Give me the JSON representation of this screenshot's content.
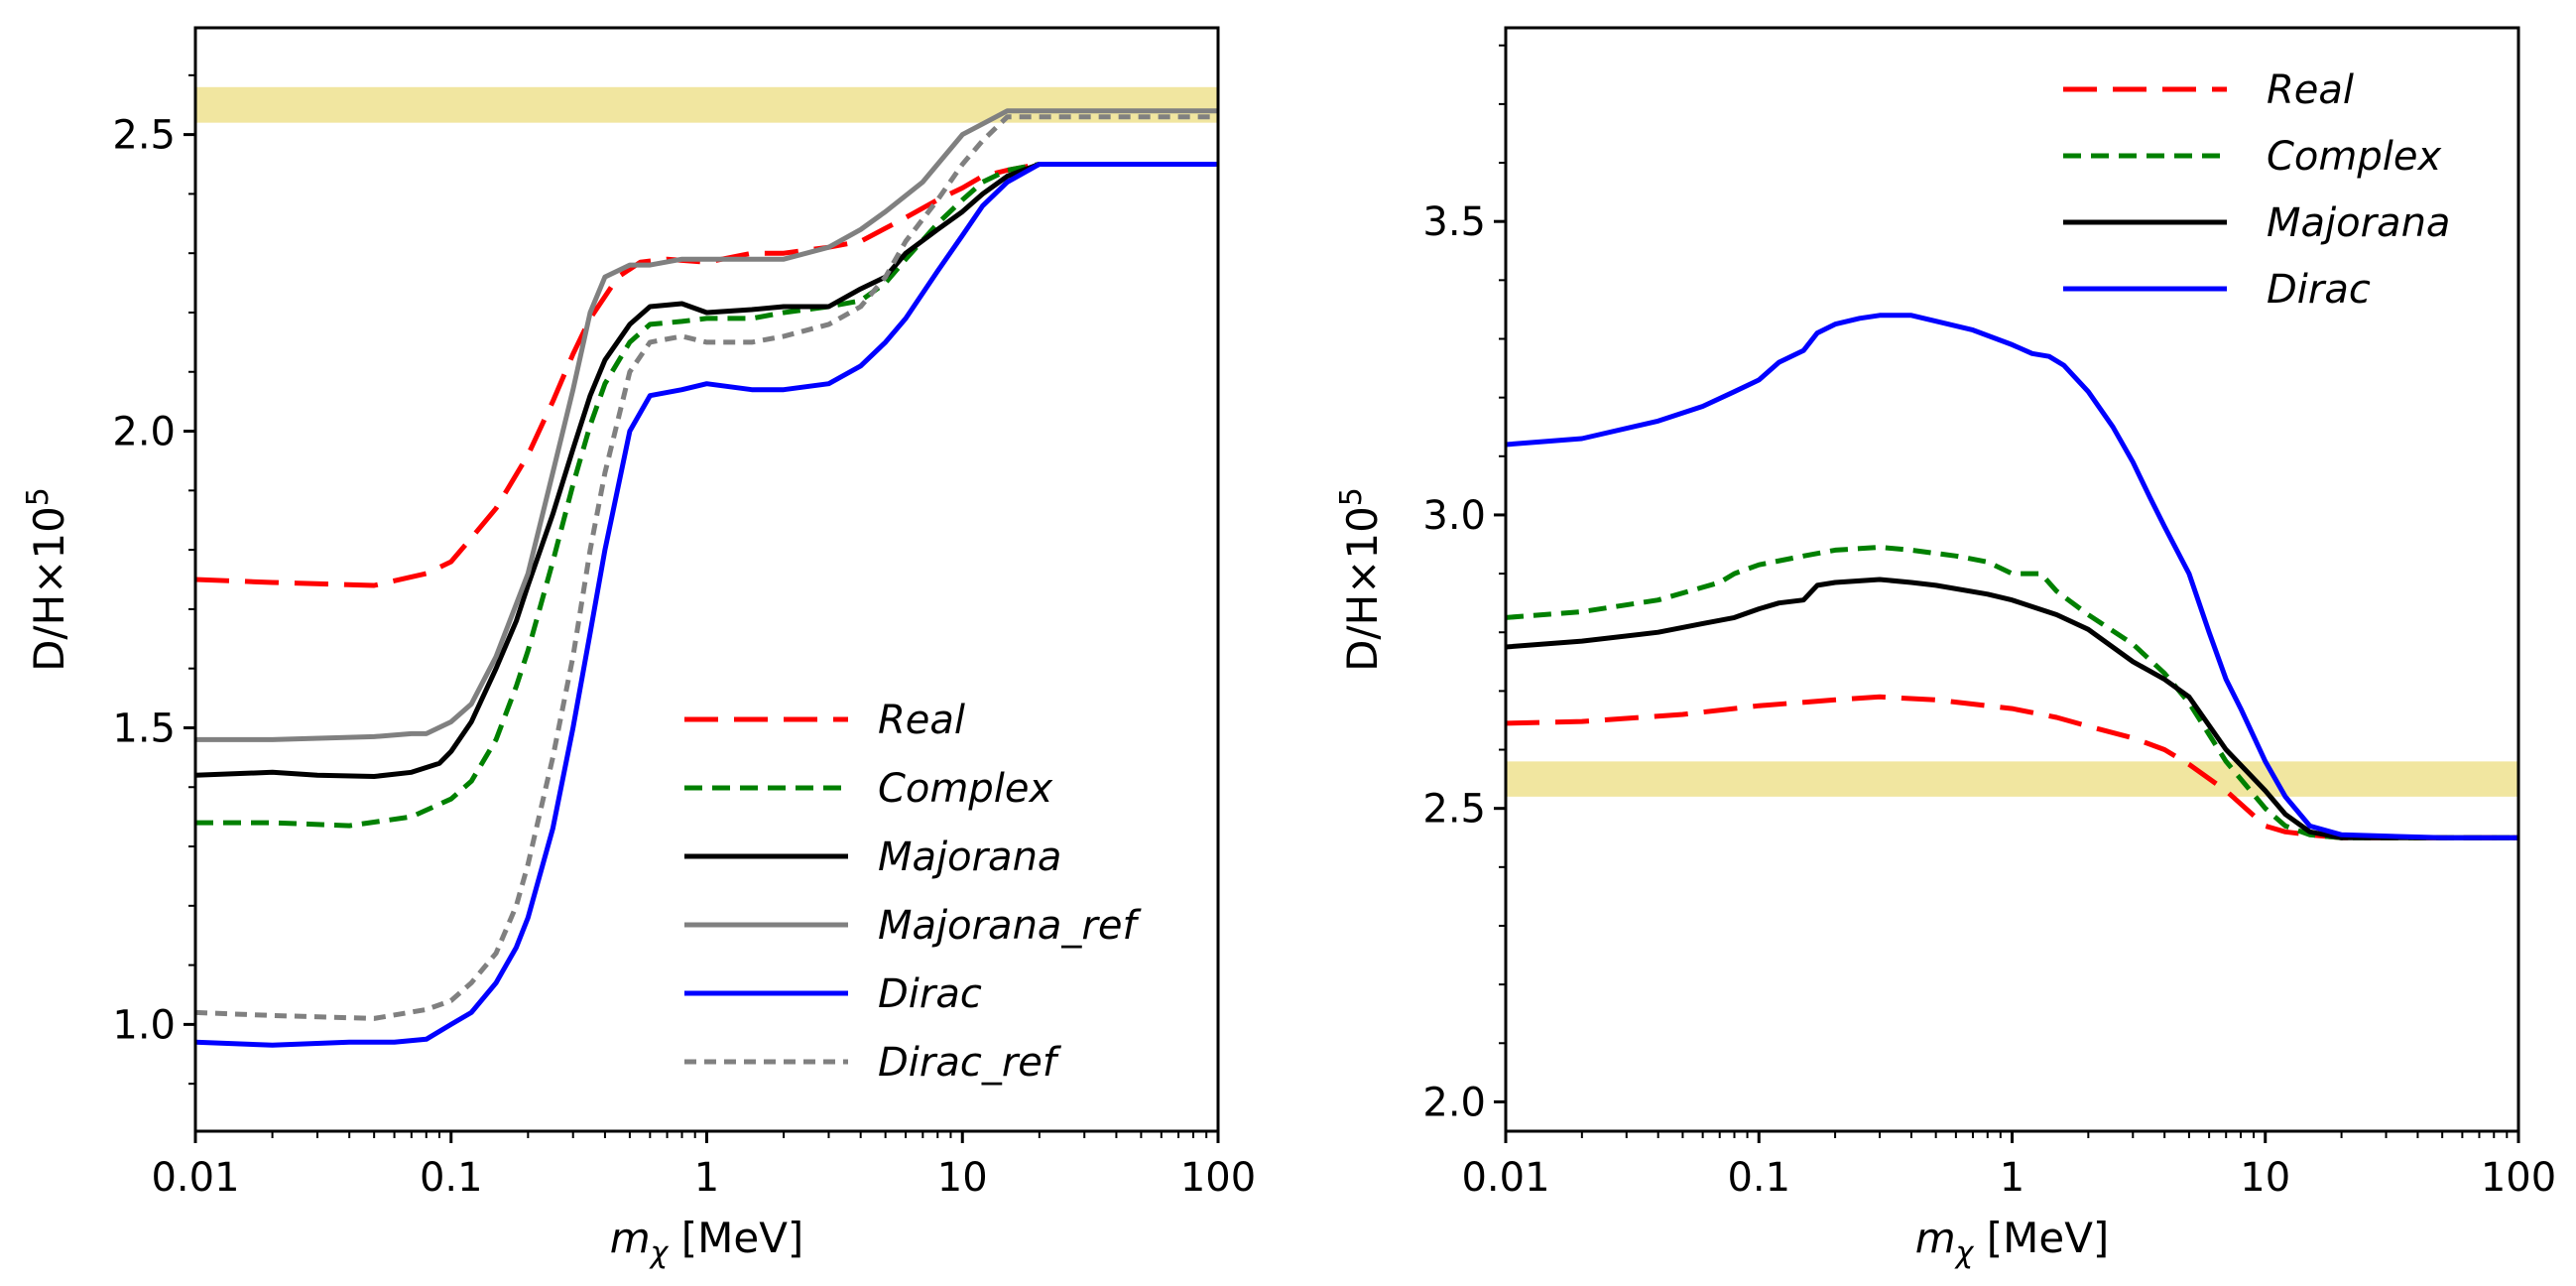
{
  "chart_data": [
    {
      "type": "line",
      "xscale": "log",
      "xlim": [
        0.01,
        100
      ],
      "ylim": [
        0.82,
        2.68
      ],
      "xticks": [
        0.01,
        0.1,
        1,
        10,
        100
      ],
      "xtick_labels": [
        "0.01",
        "0.1",
        "1",
        "10",
        "100"
      ],
      "yticks": [
        1.0,
        1.5,
        2.0,
        2.5
      ],
      "ytick_labels": [
        "1.0",
        "1.5",
        "2.0",
        "2.5"
      ],
      "xlabel": {
        "sym": "m",
        "sub": "χ",
        "unit": " [MeV]"
      },
      "ylabel": {
        "base": "D/H×10",
        "exp": "5"
      },
      "band": {
        "y0": 2.52,
        "y1": 2.58,
        "color": "#f1e6a0"
      },
      "legend_position": "lower-right",
      "series": [
        {
          "name": "Real",
          "color": "#ff0000",
          "style": "longdash",
          "x": [
            0.01,
            0.02,
            0.05,
            0.08,
            0.1,
            0.12,
            0.15,
            0.2,
            0.25,
            0.3,
            0.35,
            0.45,
            0.55,
            0.7,
            1,
            1.5,
            2,
            3,
            4,
            6,
            8,
            10,
            12,
            15,
            20,
            30,
            50,
            100
          ],
          "y": [
            1.75,
            1.745,
            1.74,
            1.76,
            1.78,
            1.82,
            1.87,
            1.96,
            2.05,
            2.13,
            2.19,
            2.26,
            2.285,
            2.29,
            2.285,
            2.3,
            2.3,
            2.31,
            2.32,
            2.36,
            2.39,
            2.41,
            2.43,
            2.44,
            2.45,
            2.45,
            2.45,
            2.45
          ]
        },
        {
          "name": "Complex",
          "color": "#008000",
          "style": "dash",
          "x": [
            0.01,
            0.02,
            0.04,
            0.07,
            0.1,
            0.12,
            0.15,
            0.18,
            0.2,
            0.25,
            0.3,
            0.35,
            0.4,
            0.5,
            0.6,
            0.8,
            1,
            1.5,
            2,
            3,
            4,
            5,
            6,
            8,
            10,
            12,
            15,
            20,
            30,
            50,
            100
          ],
          "y": [
            1.34,
            1.34,
            1.335,
            1.35,
            1.38,
            1.41,
            1.48,
            1.57,
            1.63,
            1.78,
            1.91,
            2.01,
            2.08,
            2.15,
            2.18,
            2.185,
            2.19,
            2.19,
            2.2,
            2.21,
            2.22,
            2.25,
            2.29,
            2.35,
            2.39,
            2.42,
            2.44,
            2.45,
            2.45,
            2.45,
            2.45
          ]
        },
        {
          "name": "Majorana",
          "color": "#000000",
          "style": "solid",
          "x": [
            0.01,
            0.02,
            0.03,
            0.05,
            0.07,
            0.09,
            0.1,
            0.12,
            0.15,
            0.18,
            0.2,
            0.25,
            0.3,
            0.35,
            0.4,
            0.5,
            0.6,
            0.8,
            1,
            1.5,
            2,
            3,
            4,
            5,
            6,
            8,
            10,
            12,
            15,
            20,
            30,
            50,
            100
          ],
          "y": [
            1.42,
            1.425,
            1.42,
            1.418,
            1.425,
            1.44,
            1.46,
            1.51,
            1.6,
            1.68,
            1.74,
            1.86,
            1.97,
            2.06,
            2.12,
            2.18,
            2.21,
            2.215,
            2.2,
            2.205,
            2.21,
            2.21,
            2.24,
            2.26,
            2.3,
            2.34,
            2.37,
            2.4,
            2.43,
            2.45,
            2.45,
            2.45,
            2.45
          ]
        },
        {
          "name": "Majorana_ref",
          "color": "#808080",
          "style": "solid",
          "x": [
            0.01,
            0.02,
            0.05,
            0.07,
            0.08,
            0.1,
            0.12,
            0.15,
            0.2,
            0.25,
            0.3,
            0.35,
            0.4,
            0.5,
            0.6,
            0.8,
            1,
            1.5,
            2,
            3,
            4,
            5,
            7,
            10,
            15,
            20,
            30,
            50,
            100
          ],
          "y": [
            1.48,
            1.48,
            1.485,
            1.49,
            1.49,
            1.51,
            1.54,
            1.62,
            1.76,
            1.93,
            2.07,
            2.2,
            2.26,
            2.28,
            2.28,
            2.29,
            2.29,
            2.29,
            2.29,
            2.31,
            2.34,
            2.37,
            2.42,
            2.5,
            2.54,
            2.54,
            2.54,
            2.54,
            2.54
          ]
        },
        {
          "name": "Dirac",
          "color": "#0000ff",
          "style": "solid",
          "x": [
            0.01,
            0.02,
            0.04,
            0.06,
            0.08,
            0.1,
            0.12,
            0.15,
            0.18,
            0.2,
            0.25,
            0.3,
            0.35,
            0.4,
            0.5,
            0.6,
            0.8,
            1,
            1.5,
            2,
            3,
            4,
            5,
            6,
            8,
            10,
            12,
            15,
            20,
            30,
            50,
            100
          ],
          "y": [
            0.97,
            0.965,
            0.97,
            0.97,
            0.975,
            1.0,
            1.02,
            1.07,
            1.13,
            1.18,
            1.33,
            1.5,
            1.66,
            1.8,
            2.0,
            2.06,
            2.07,
            2.08,
            2.07,
            2.07,
            2.08,
            2.11,
            2.15,
            2.19,
            2.27,
            2.33,
            2.38,
            2.42,
            2.45,
            2.45,
            2.45,
            2.45
          ]
        },
        {
          "name": "Dirac_ref",
          "color": "#808080",
          "style": "shortdash",
          "x": [
            0.01,
            0.02,
            0.05,
            0.08,
            0.1,
            0.12,
            0.15,
            0.18,
            0.2,
            0.25,
            0.3,
            0.35,
            0.4,
            0.5,
            0.6,
            0.8,
            1,
            1.5,
            2,
            3,
            4,
            5,
            6,
            8,
            10,
            12,
            15,
            20,
            30,
            50,
            100
          ],
          "y": [
            1.02,
            1.015,
            1.01,
            1.025,
            1.04,
            1.07,
            1.12,
            1.2,
            1.27,
            1.45,
            1.62,
            1.8,
            1.93,
            2.1,
            2.15,
            2.16,
            2.15,
            2.15,
            2.16,
            2.18,
            2.21,
            2.26,
            2.32,
            2.39,
            2.45,
            2.49,
            2.53,
            2.53,
            2.53,
            2.53,
            2.53
          ]
        }
      ]
    },
    {
      "type": "line",
      "xscale": "log",
      "xlim": [
        0.01,
        100
      ],
      "ylim": [
        1.95,
        3.83
      ],
      "xticks": [
        0.01,
        0.1,
        1,
        10,
        100
      ],
      "xtick_labels": [
        "0.01",
        "0.1",
        "1",
        "10",
        "100"
      ],
      "yticks": [
        2.0,
        2.5,
        3.0,
        3.5
      ],
      "ytick_labels": [
        "2.0",
        "2.5",
        "3.0",
        "3.5"
      ],
      "xlabel": {
        "sym": "m",
        "sub": "χ",
        "unit": " [MeV]"
      },
      "ylabel": {
        "base": "D/H×10",
        "exp": "5"
      },
      "band": {
        "y0": 2.52,
        "y1": 2.58,
        "color": "#f1e6a0"
      },
      "legend_position": "upper-right",
      "series": [
        {
          "name": "Real",
          "color": "#ff0000",
          "style": "longdash",
          "x": [
            0.01,
            0.02,
            0.05,
            0.1,
            0.2,
            0.3,
            0.5,
            1,
            1.5,
            2,
            3,
            4,
            5,
            7,
            10,
            12,
            15,
            20,
            50,
            100
          ],
          "y": [
            2.645,
            2.648,
            2.66,
            2.675,
            2.685,
            2.69,
            2.685,
            2.67,
            2.655,
            2.64,
            2.62,
            2.6,
            2.575,
            2.53,
            2.47,
            2.46,
            2.455,
            2.45,
            2.45,
            2.45
          ]
        },
        {
          "name": "Complex",
          "color": "#008000",
          "style": "dash",
          "x": [
            0.01,
            0.02,
            0.04,
            0.07,
            0.08,
            0.1,
            0.15,
            0.2,
            0.3,
            0.4,
            0.6,
            0.8,
            1,
            1.3,
            1.5,
            2,
            3,
            4,
            5,
            7,
            10,
            12,
            15,
            20,
            50,
            100
          ],
          "y": [
            2.825,
            2.835,
            2.855,
            2.885,
            2.9,
            2.915,
            2.93,
            2.94,
            2.945,
            2.94,
            2.93,
            2.92,
            2.9,
            2.9,
            2.87,
            2.83,
            2.78,
            2.73,
            2.68,
            2.58,
            2.5,
            2.47,
            2.455,
            2.45,
            2.45,
            2.45
          ]
        },
        {
          "name": "Majorana",
          "color": "#000000",
          "style": "solid",
          "x": [
            0.01,
            0.02,
            0.04,
            0.06,
            0.08,
            0.1,
            0.12,
            0.15,
            0.17,
            0.2,
            0.3,
            0.4,
            0.5,
            0.8,
            1,
            1.5,
            2,
            3,
            4,
            5,
            7,
            10,
            12,
            15,
            20,
            50,
            100
          ],
          "y": [
            2.775,
            2.785,
            2.8,
            2.815,
            2.825,
            2.84,
            2.85,
            2.855,
            2.88,
            2.885,
            2.89,
            2.885,
            2.88,
            2.865,
            2.855,
            2.83,
            2.805,
            2.75,
            2.72,
            2.69,
            2.6,
            2.53,
            2.49,
            2.46,
            2.45,
            2.45,
            2.45
          ]
        },
        {
          "name": "Dirac",
          "color": "#0000ff",
          "style": "solid",
          "x": [
            0.01,
            0.02,
            0.04,
            0.06,
            0.08,
            0.1,
            0.12,
            0.15,
            0.17,
            0.2,
            0.25,
            0.3,
            0.4,
            0.5,
            0.7,
            1,
            1.2,
            1.4,
            1.6,
            2,
            2.5,
            3,
            3.5,
            4,
            5,
            6,
            7,
            8,
            10,
            12,
            15,
            20,
            50,
            100
          ],
          "y": [
            3.12,
            3.13,
            3.16,
            3.185,
            3.21,
            3.23,
            3.26,
            3.28,
            3.31,
            3.325,
            3.335,
            3.34,
            3.34,
            3.33,
            3.315,
            3.29,
            3.275,
            3.27,
            3.255,
            3.21,
            3.15,
            3.09,
            3.03,
            2.98,
            2.9,
            2.8,
            2.72,
            2.67,
            2.58,
            2.52,
            2.47,
            2.455,
            2.45,
            2.45
          ]
        }
      ]
    }
  ]
}
